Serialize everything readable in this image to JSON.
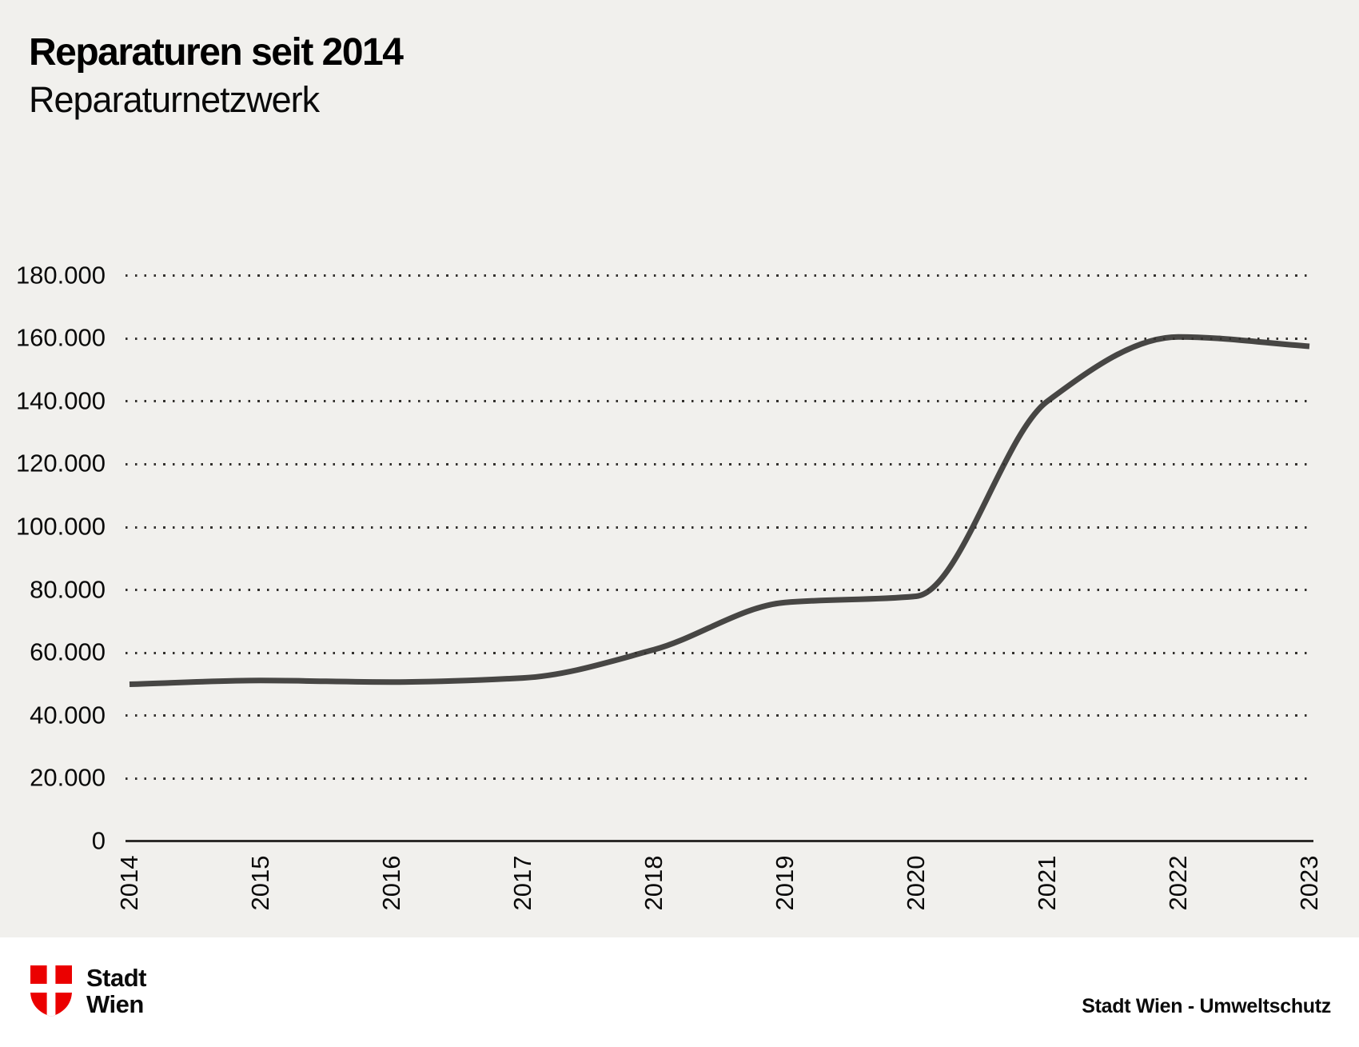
{
  "header": {
    "title": "Reparaturen seit 2014",
    "subtitle": "Reparaturnetzwerk"
  },
  "chart_data": {
    "type": "line",
    "title": "Reparaturen seit 2014",
    "subtitle": "Reparaturnetzwerk",
    "categories": [
      "2014",
      "2015",
      "2016",
      "2017",
      "2018",
      "2019",
      "2020",
      "2021",
      "2022",
      "2023"
    ],
    "series": [
      {
        "name": "Reparaturen Reparaturnetzwerk",
        "values": [
          50000,
          51200,
          50700,
          52000,
          61000,
          76000,
          78000,
          140000,
          160500,
          157500
        ]
      }
    ],
    "xlabel": "",
    "ylabel": "",
    "ylim": [
      0,
      180000
    ],
    "ytick_step": 20000,
    "yticks": [
      {
        "value": 0,
        "label": "0"
      },
      {
        "value": 20000,
        "label": "20.000"
      },
      {
        "value": 40000,
        "label": "40.000"
      },
      {
        "value": 60000,
        "label": "60.000"
      },
      {
        "value": 80000,
        "label": "80.000"
      },
      {
        "value": 100000,
        "label": "100.000"
      },
      {
        "value": 120000,
        "label": "120.000"
      },
      {
        "value": 140000,
        "label": "140.000"
      },
      {
        "value": 160000,
        "label": "160.000"
      },
      {
        "value": 180000,
        "label": "180.000"
      }
    ],
    "grid": "horizontal-dotted",
    "legend": "none",
    "line_color": "#474644",
    "background": "#f1f0ed"
  },
  "footer": {
    "logo_icon": "wien-shield-icon",
    "logo_line1": "Stadt",
    "logo_line2": "Wien",
    "brand_red": "#eb0000",
    "source": "Stadt Wien - Umweltschutz"
  }
}
